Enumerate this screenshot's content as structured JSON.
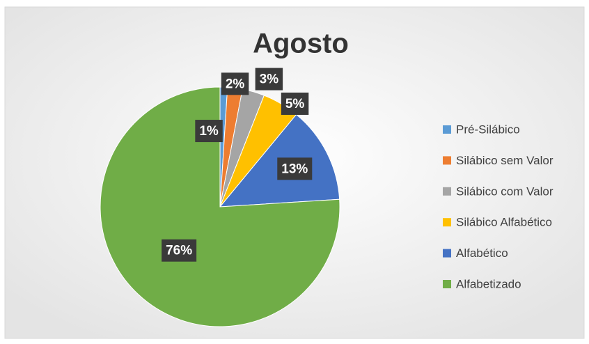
{
  "chart_data": {
    "type": "pie",
    "title": "Agosto",
    "categories": [
      "Pré-Silábico",
      "Silábico sem Valor",
      "Silábico com Valor",
      "Silábico Alfabético",
      "Alfabético",
      "Alfabetizado"
    ],
    "values": [
      1,
      2,
      3,
      5,
      13,
      76
    ],
    "value_labels": [
      "1%",
      "2%",
      "3%",
      "5%",
      "13%",
      "76%"
    ],
    "colors": [
      "#5b9bd5",
      "#ed7d31",
      "#a5a5a5",
      "#ffc000",
      "#4472c4",
      "#70ad47"
    ],
    "legend": "right"
  }
}
